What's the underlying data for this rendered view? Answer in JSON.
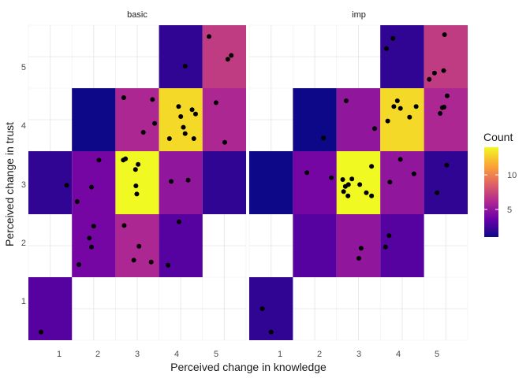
{
  "chart_data": {
    "type": "heatmap",
    "title": "",
    "xlabel": "Perceived change in knowledge",
    "ylabel": "Perceived change in trust",
    "x_ticks": [
      1,
      2,
      3,
      4,
      5
    ],
    "y_ticks": [
      1,
      2,
      3,
      4,
      5
    ],
    "xlim": [
      0.5,
      5.5
    ],
    "ylim": [
      0.5,
      5.5
    ],
    "grid": true,
    "legend": {
      "title": "Count",
      "placement": "right",
      "ticks": [
        5,
        10
      ],
      "min": 1,
      "max": 14,
      "palette": [
        "#0d0887",
        "#6a00a8",
        "#b12a90",
        "#e16462",
        "#fca636",
        "#f0f921"
      ]
    },
    "point_color": "#000000",
    "panels": [
      {
        "name": "basic",
        "tiles": [
          {
            "x": 1,
            "y": 1,
            "count": 3
          },
          {
            "x": 1,
            "y": 3,
            "count": 2
          },
          {
            "x": 2,
            "y": 2,
            "count": 4
          },
          {
            "x": 2,
            "y": 3,
            "count": 4
          },
          {
            "x": 2,
            "y": 4,
            "count": 1
          },
          {
            "x": 3,
            "y": 2,
            "count": 6
          },
          {
            "x": 3,
            "y": 3,
            "count": 14
          },
          {
            "x": 3,
            "y": 4,
            "count": 6
          },
          {
            "x": 4,
            "y": 2,
            "count": 3
          },
          {
            "x": 4,
            "y": 3,
            "count": 5
          },
          {
            "x": 4,
            "y": 4,
            "count": 13
          },
          {
            "x": 4,
            "y": 5,
            "count": 2
          },
          {
            "x": 5,
            "y": 3,
            "count": 2
          },
          {
            "x": 5,
            "y": 4,
            "count": 6
          },
          {
            "x": 5,
            "y": 5,
            "count": 7
          }
        ],
        "points": [
          [
            0.79,
            0.63
          ],
          [
            1.38,
            2.96
          ],
          [
            1.62,
            2.7
          ],
          [
            1.9,
            2.12
          ],
          [
            1.95,
            1.98
          ],
          [
            2.0,
            2.31
          ],
          [
            1.66,
            1.7
          ],
          [
            1.95,
            2.93
          ],
          [
            2.12,
            3.36
          ],
          [
            2.7,
            2.32
          ],
          [
            3.04,
            1.99
          ],
          [
            2.92,
            1.77
          ],
          [
            3.32,
            1.74
          ],
          [
            2.68,
            3.36
          ],
          [
            2.73,
            3.38
          ],
          [
            2.96,
            3.21
          ],
          [
            3.02,
            3.29
          ],
          [
            2.97,
            2.95
          ],
          [
            2.99,
            2.82
          ],
          [
            2.69,
            4.35
          ],
          [
            3.35,
            4.32
          ],
          [
            3.4,
            3.94
          ],
          [
            3.14,
            3.8
          ],
          [
            3.96,
            2.38
          ],
          [
            3.71,
            1.69
          ],
          [
            3.78,
            3.02
          ],
          [
            4.17,
            3.04
          ],
          [
            3.74,
            3.7
          ],
          [
            3.95,
            4.21
          ],
          [
            4.0,
            4.05
          ],
          [
            4.06,
            3.88
          ],
          [
            4.1,
            3.78
          ],
          [
            4.3,
            3.7
          ],
          [
            4.34,
            4.09
          ],
          [
            4.26,
            4.16
          ],
          [
            4.1,
            4.85
          ],
          [
            4.65,
            5.32
          ],
          [
            4.81,
            4.27
          ],
          [
            5.01,
            3.64
          ],
          [
            5.08,
            4.96
          ],
          [
            5.16,
            5.02
          ]
        ]
      },
      {
        "name": "imp",
        "tiles": [
          {
            "x": 1,
            "y": 1,
            "count": 2
          },
          {
            "x": 1,
            "y": 3,
            "count": 1
          },
          {
            "x": 2,
            "y": 2,
            "count": 3
          },
          {
            "x": 2,
            "y": 3,
            "count": 4
          },
          {
            "x": 2,
            "y": 4,
            "count": 1
          },
          {
            "x": 3,
            "y": 2,
            "count": 5
          },
          {
            "x": 3,
            "y": 3,
            "count": 14
          },
          {
            "x": 3,
            "y": 4,
            "count": 5
          },
          {
            "x": 4,
            "y": 2,
            "count": 3
          },
          {
            "x": 4,
            "y": 3,
            "count": 5
          },
          {
            "x": 4,
            "y": 4,
            "count": 13
          },
          {
            "x": 4,
            "y": 5,
            "count": 2
          },
          {
            "x": 5,
            "y": 3,
            "count": 2
          },
          {
            "x": 5,
            "y": 4,
            "count": 6
          },
          {
            "x": 5,
            "y": 5,
            "count": 7
          }
        ],
        "points": [
          [
            0.8,
            1.0
          ],
          [
            1.0,
            0.63
          ],
          [
            1.82,
            3.16
          ],
          [
            2.2,
            3.71
          ],
          [
            2.38,
            3.08
          ],
          [
            2.77,
            2.97
          ],
          [
            2.64,
            3.05
          ],
          [
            2.7,
            2.94
          ],
          [
            2.66,
            2.86
          ],
          [
            2.76,
            2.79
          ],
          [
            2.85,
            3.06
          ],
          [
            3.03,
            2.97
          ],
          [
            3.18,
            2.84
          ],
          [
            3.3,
            2.79
          ],
          [
            3.3,
            3.26
          ],
          [
            2.72,
            4.3
          ],
          [
            3.37,
            3.86
          ],
          [
            3.01,
            1.8
          ],
          [
            3.06,
            1.96
          ],
          [
            3.62,
            1.98
          ],
          [
            3.7,
            2.16
          ],
          [
            3.72,
            3.01
          ],
          [
            3.96,
            3.37
          ],
          [
            4.27,
            3.14
          ],
          [
            3.67,
            3.98
          ],
          [
            3.81,
            4.21
          ],
          [
            3.89,
            4.3
          ],
          [
            3.96,
            4.18
          ],
          [
            4.17,
            4.04
          ],
          [
            4.32,
            4.21
          ],
          [
            3.64,
            5.13
          ],
          [
            3.79,
            5.29
          ],
          [
            4.62,
            4.64
          ],
          [
            4.74,
            4.74
          ],
          [
            4.95,
            4.78
          ],
          [
            4.87,
            4.1
          ],
          [
            4.92,
            4.19
          ],
          [
            4.96,
            4.2
          ],
          [
            5.03,
            4.38
          ],
          [
            4.8,
            2.84
          ],
          [
            5.02,
            3.28
          ],
          [
            4.97,
            5.35
          ]
        ]
      }
    ]
  }
}
